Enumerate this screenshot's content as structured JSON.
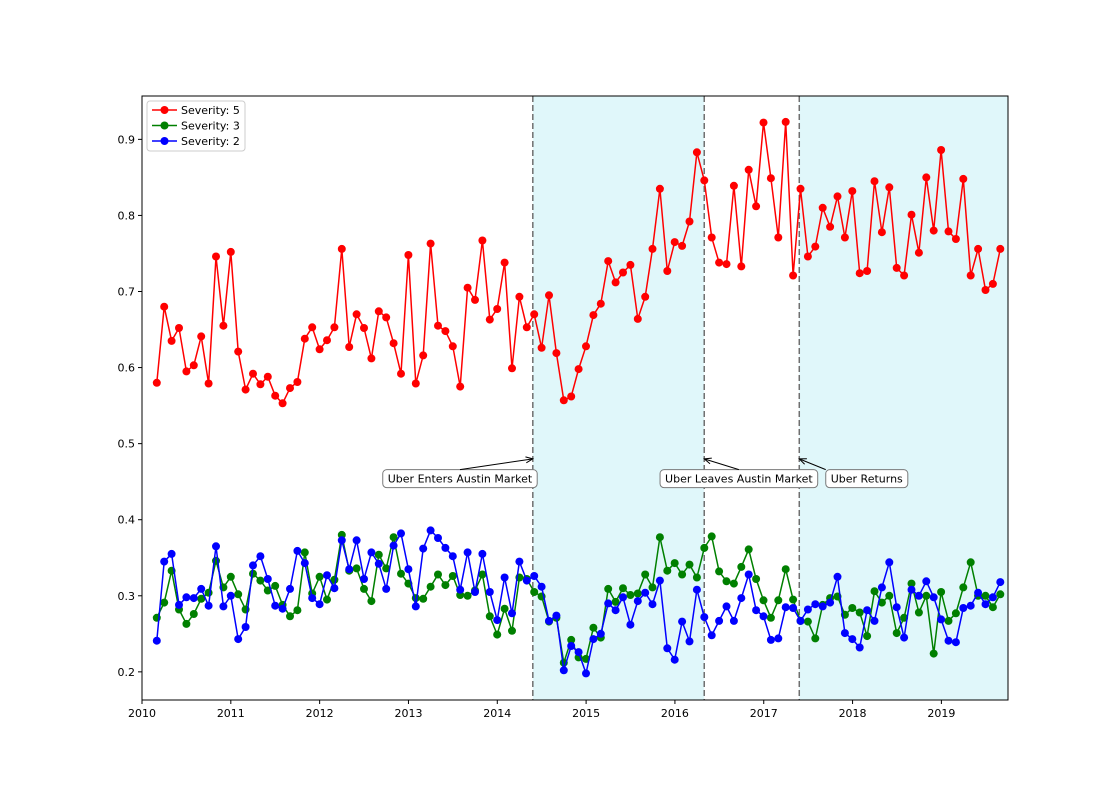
{
  "chart_data": {
    "type": "line",
    "title": "",
    "xlabel": "",
    "ylabel": "",
    "xlim": [
      2010.0,
      2019.75
    ],
    "ylim": [
      0.163,
      0.957
    ],
    "x_ticks": [
      2010,
      2011,
      2012,
      2013,
      2014,
      2015,
      2016,
      2017,
      2018,
      2019
    ],
    "y_ticks": [
      0.2,
      0.3,
      0.4,
      0.5,
      0.6,
      0.7,
      0.8,
      0.9
    ],
    "x_tick_labels": [
      "2010",
      "2011",
      "2012",
      "2013",
      "2014",
      "2015",
      "2016",
      "2017",
      "2018",
      "2019"
    ],
    "y_tick_labels": [
      "0.2",
      "0.3",
      "0.4",
      "0.5",
      "0.6",
      "0.7",
      "0.8",
      "0.9"
    ],
    "grid": false,
    "legend_position": "top-left",
    "x_start": 2010.167,
    "x_step": 0.0833,
    "series": [
      {
        "name": "Severity: 5",
        "color": "#ff0000",
        "values": [
          0.58,
          0.68,
          0.635,
          0.652,
          0.595,
          0.603,
          0.641,
          0.579,
          0.746,
          0.655,
          0.752,
          0.621,
          0.571,
          0.592,
          0.578,
          0.588,
          0.563,
          0.553,
          0.573,
          0.581,
          0.638,
          0.653,
          0.624,
          0.636,
          0.653,
          0.756,
          0.627,
          0.67,
          0.652,
          0.612,
          0.674,
          0.666,
          0.632,
          0.592,
          0.748,
          0.579,
          0.616,
          0.763,
          0.655,
          0.648,
          0.628,
          0.575,
          0.705,
          0.689,
          0.767,
          0.663,
          0.677,
          0.738,
          0.599,
          0.693,
          0.653,
          0.67,
          0.626,
          0.695,
          0.619,
          0.557,
          0.562,
          0.598,
          0.628,
          0.669,
          0.684,
          0.74,
          0.712,
          0.725,
          0.735,
          0.664,
          0.693,
          0.756,
          0.835,
          0.727,
          0.765,
          0.76,
          0.792,
          0.883,
          0.846,
          0.771,
          0.738,
          0.736,
          0.839,
          0.733,
          0.86,
          0.812,
          0.922,
          0.849,
          0.771,
          0.923,
          0.721,
          0.835,
          0.746,
          0.759,
          0.81,
          0.785,
          0.825,
          0.771,
          0.832,
          0.724,
          0.727,
          0.845,
          0.778,
          0.837,
          0.731,
          0.721,
          0.801,
          0.751,
          0.85,
          0.78,
          0.886,
          0.779,
          0.769,
          0.848,
          0.721,
          0.756,
          0.702,
          0.71,
          0.756
        ]
      },
      {
        "name": "Severity: 3",
        "color": "#008000",
        "values": [
          0.271,
          0.291,
          0.333,
          0.282,
          0.263,
          0.276,
          0.296,
          0.304,
          0.346,
          0.311,
          0.325,
          0.302,
          0.282,
          0.329,
          0.32,
          0.307,
          0.313,
          0.288,
          0.273,
          0.281,
          0.357,
          0.303,
          0.325,
          0.295,
          0.321,
          0.38,
          0.333,
          0.336,
          0.309,
          0.293,
          0.354,
          0.336,
          0.377,
          0.329,
          0.316,
          0.297,
          0.296,
          0.312,
          0.328,
          0.314,
          0.326,
          0.301,
          0.3,
          0.307,
          0.328,
          0.273,
          0.249,
          0.283,
          0.254,
          0.324,
          0.322,
          0.305,
          0.299,
          0.266,
          0.271,
          0.212,
          0.242,
          0.219,
          0.217,
          0.258,
          0.245,
          0.309,
          0.292,
          0.31,
          0.301,
          0.303,
          0.328,
          0.311,
          0.377,
          0.333,
          0.343,
          0.328,
          0.341,
          0.324,
          0.363,
          0.378,
          0.332,
          0.319,
          0.316,
          0.338,
          0.361,
          0.322,
          0.294,
          0.271,
          0.294,
          0.335,
          0.295,
          0.267,
          0.266,
          0.244,
          0.288,
          0.297,
          0.299,
          0.275,
          0.284,
          0.278,
          0.247,
          0.306,
          0.291,
          0.3,
          0.251,
          0.271,
          0.316,
          0.278,
          0.3,
          0.224,
          0.305,
          0.267,
          0.277,
          0.311,
          0.344,
          0.3,
          0.3,
          0.285,
          0.302
        ]
      },
      {
        "name": "Severity: 2",
        "color": "#0000ff",
        "values": [
          0.241,
          0.345,
          0.355,
          0.288,
          0.298,
          0.297,
          0.309,
          0.287,
          0.365,
          0.286,
          0.3,
          0.243,
          0.259,
          0.34,
          0.352,
          0.322,
          0.287,
          0.283,
          0.309,
          0.359,
          0.343,
          0.297,
          0.289,
          0.327,
          0.31,
          0.373,
          0.335,
          0.373,
          0.322,
          0.357,
          0.342,
          0.309,
          0.366,
          0.382,
          0.335,
          0.286,
          0.362,
          0.386,
          0.376,
          0.363,
          0.352,
          0.308,
          0.357,
          0.305,
          0.355,
          0.305,
          0.268,
          0.324,
          0.277,
          0.345,
          0.32,
          0.326,
          0.312,
          0.267,
          0.274,
          0.202,
          0.234,
          0.226,
          0.198,
          0.243,
          0.25,
          0.29,
          0.281,
          0.298,
          0.262,
          0.293,
          0.304,
          0.289,
          0.32,
          0.231,
          0.216,
          0.266,
          0.24,
          0.308,
          0.272,
          0.248,
          0.267,
          0.286,
          0.267,
          0.297,
          0.328,
          0.281,
          0.273,
          0.242,
          0.244,
          0.285,
          0.284,
          0.267,
          0.282,
          0.289,
          0.286,
          0.291,
          0.325,
          0.251,
          0.243,
          0.232,
          0.281,
          0.267,
          0.311,
          0.344,
          0.285,
          0.245,
          0.308,
          0.3,
          0.319,
          0.298,
          0.269,
          0.241,
          0.239,
          0.284,
          0.287,
          0.304,
          0.289,
          0.298,
          0.318
        ]
      }
    ],
    "shaded_regions": [
      {
        "x_start": 2014.4,
        "x_end": 2016.33,
        "color": "#e0f7fa"
      },
      {
        "x_start": 2017.4,
        "x_end": 2019.75,
        "color": "#e0f7fa"
      }
    ],
    "vlines": [
      2014.4,
      2016.33,
      2017.4
    ],
    "annotations": [
      {
        "text": "Uber Enters Austin Market",
        "x_point": 2014.4,
        "y_point": 0.48,
        "x_text": 2013.58,
        "y_text": 0.454
      },
      {
        "text": "Uber Leaves Austin Market",
        "x_point": 2016.33,
        "y_point": 0.48,
        "x_text": 2016.72,
        "y_text": 0.454
      },
      {
        "text": "Uber Returns",
        "x_point": 2017.4,
        "y_point": 0.48,
        "x_text": 2018.16,
        "y_text": 0.454
      }
    ]
  }
}
